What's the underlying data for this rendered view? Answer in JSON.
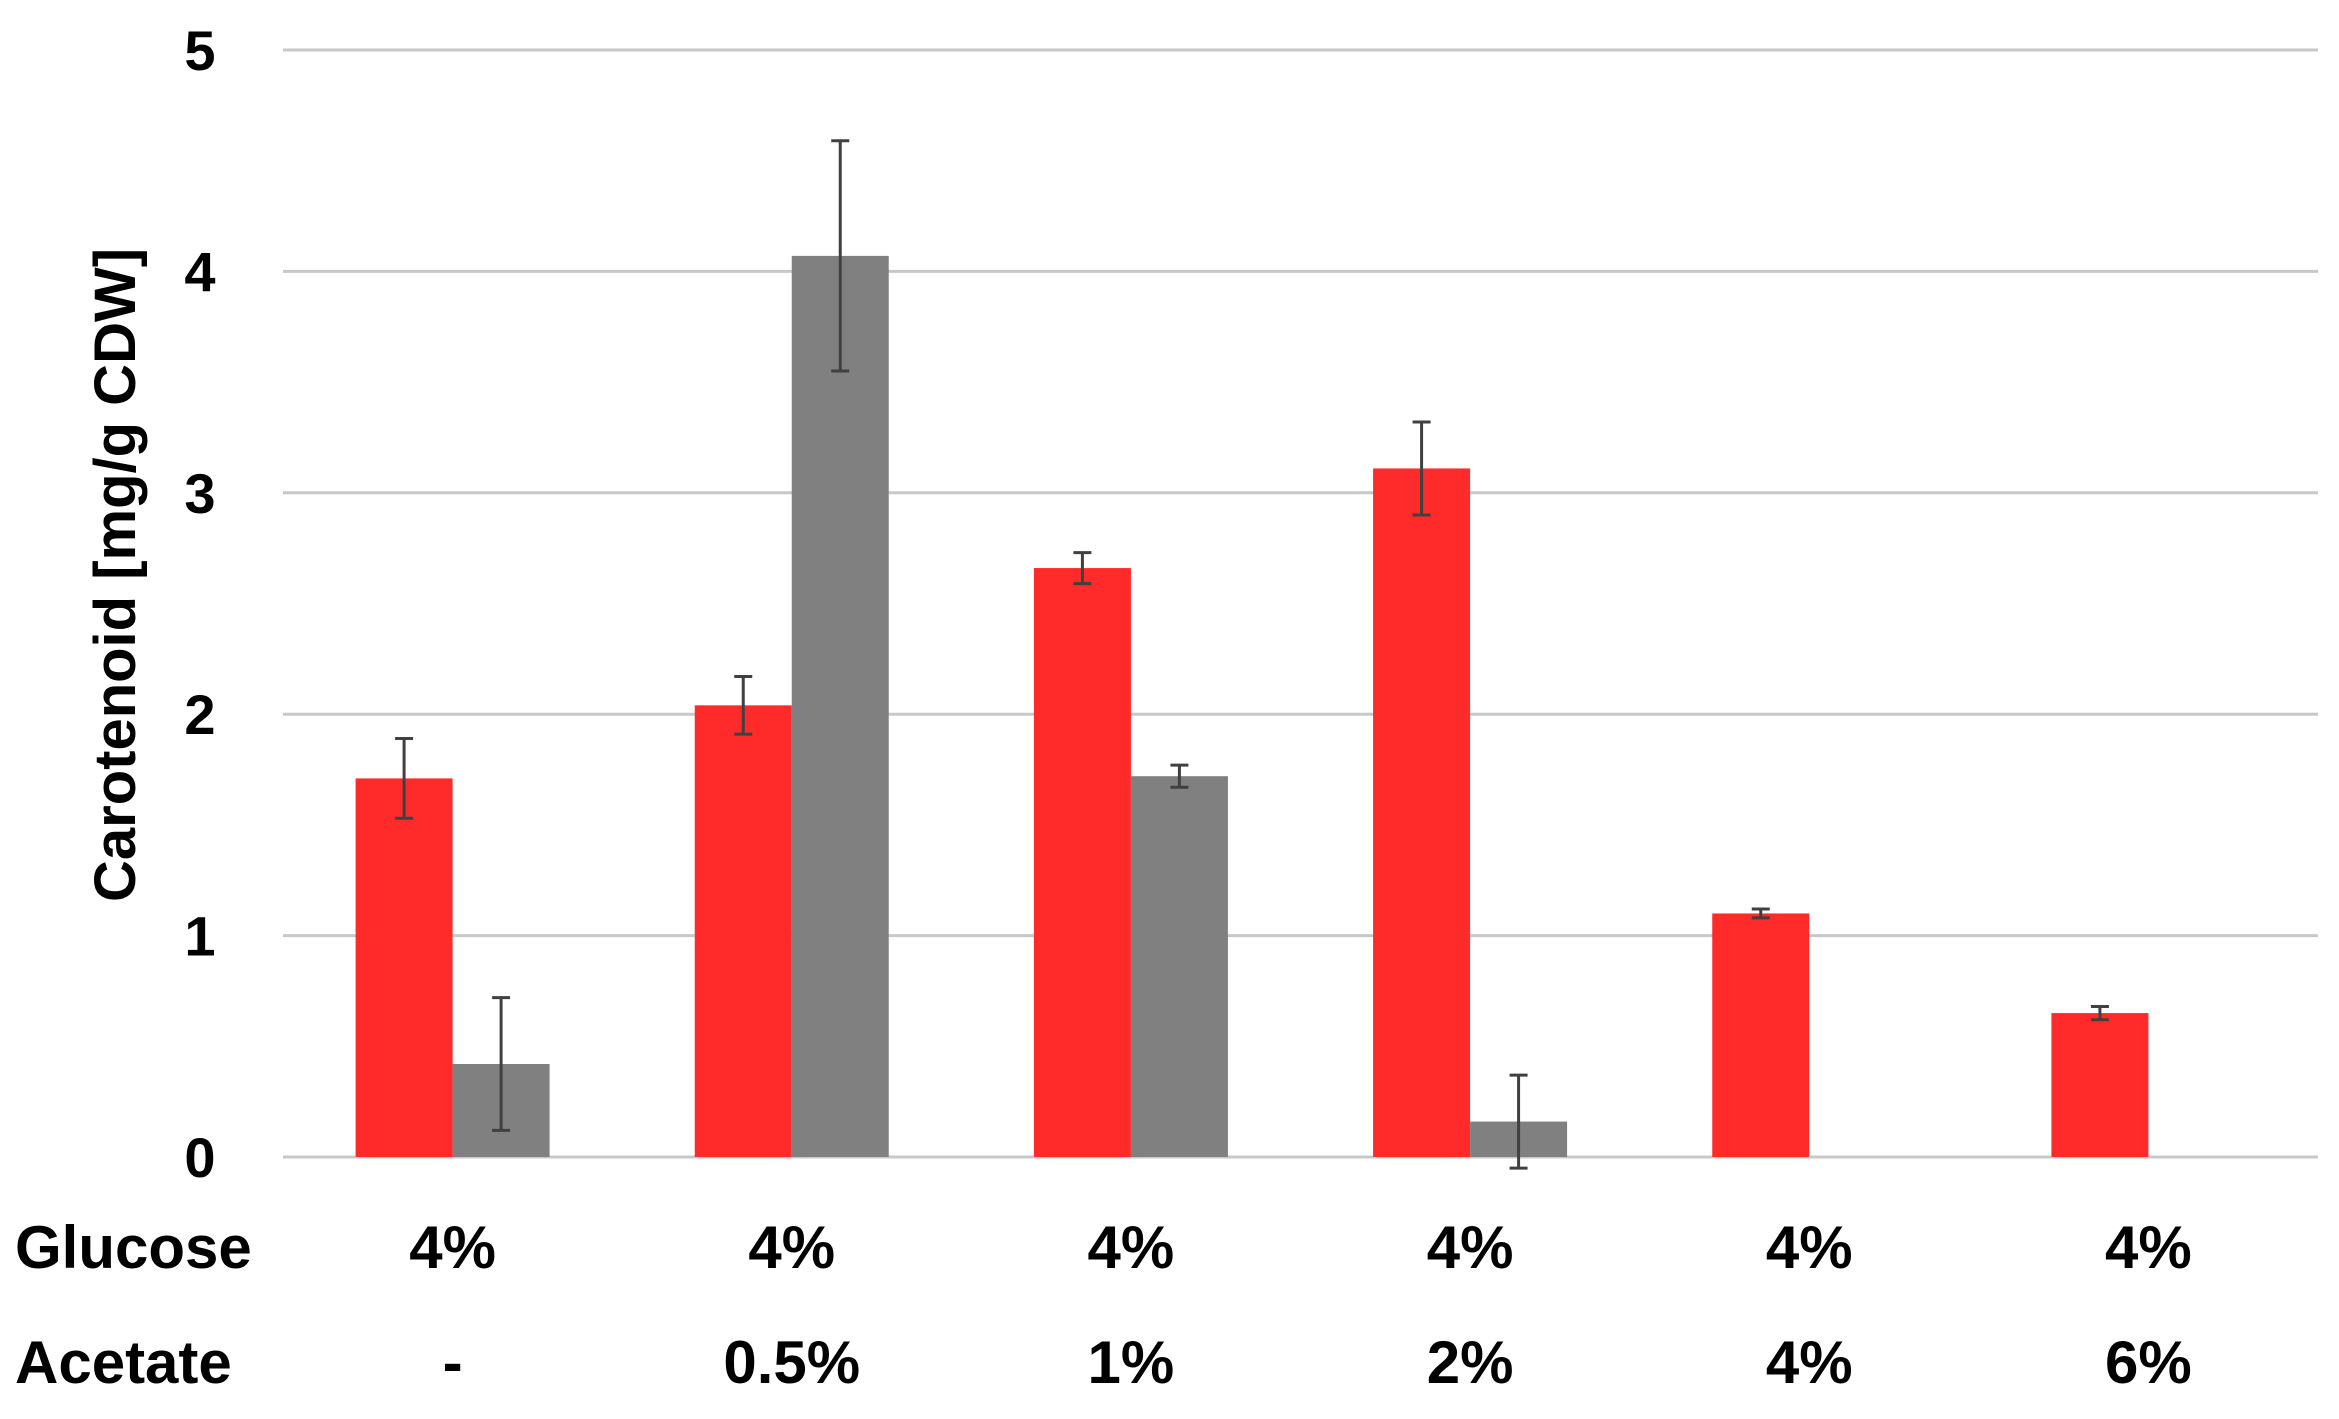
{
  "chart_data": {
    "type": "bar",
    "ylabel": "Carotenoid [mg/g CDW]",
    "ylim": [
      0,
      5
    ],
    "yticks": [
      0,
      1,
      2,
      3,
      4,
      5
    ],
    "grid": true,
    "colors": {
      "series_1": "#ff2a2a",
      "series_2": "#808080",
      "grid": "#c8c8c8",
      "error_bar": "#404040"
    },
    "category_rows": [
      {
        "label": "Glucose",
        "values": [
          "4%",
          "4%",
          "4%",
          "4%",
          "4%",
          "4%"
        ]
      },
      {
        "label": "Acetate",
        "values": [
          "-",
          "0.5%",
          "1%",
          "2%",
          "4%",
          "6%"
        ]
      }
    ],
    "series": [
      {
        "values": [
          1.71,
          2.04,
          2.66,
          3.11,
          1.1,
          0.65
        ],
        "errors": [
          0.18,
          0.13,
          0.07,
          0.21,
          0.02,
          0.03
        ]
      },
      {
        "values": [
          0.42,
          4.07,
          1.72,
          0.16,
          null,
          null
        ],
        "errors": [
          0.3,
          0.52,
          0.05,
          0.21,
          null,
          null
        ]
      }
    ]
  }
}
